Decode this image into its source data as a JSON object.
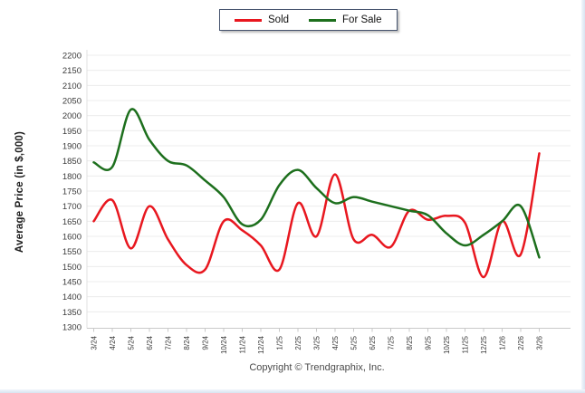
{
  "legend": {
    "items": [
      {
        "label": "Sold",
        "color": "#e8171f"
      },
      {
        "label": "For Sale",
        "color": "#1d6f1d"
      }
    ]
  },
  "y_axis": {
    "title": "Average Price (in $,000)",
    "min": 1300,
    "max": 2200,
    "step": 50
  },
  "footer": {
    "copyright": "Copyright © Trendgraphix, Inc."
  },
  "chart_data": {
    "type": "line",
    "title": "",
    "xlabel": "",
    "ylabel": "Average Price (in $,000)",
    "ylim": [
      1300,
      2200
    ],
    "ytick_step": 50,
    "grid": true,
    "legend_position": "top",
    "grid_color": "#ececec",
    "axis_color": "#c9c9c9",
    "categories": [
      "3/24",
      "4/24",
      "5/24",
      "6/24",
      "7/24",
      "8/24",
      "9/24",
      "10/24",
      "11/24",
      "12/24",
      "1/25",
      "2/25",
      "3/25",
      "4/25",
      "5/25",
      "6/25",
      "7/25",
      "8/25",
      "9/25",
      "10/25",
      "11/25",
      "12/25",
      "1/26",
      "2/26",
      "3/26"
    ],
    "series": [
      {
        "name": "Sold",
        "color": "#e8171f",
        "values": [
          1650,
          1720,
          1560,
          1700,
          1590,
          1505,
          1490,
          1650,
          1620,
          1570,
          1490,
          1710,
          1600,
          1805,
          1590,
          1605,
          1565,
          1685,
          1655,
          1668,
          1645,
          1465,
          1650,
          1540,
          1875
        ]
      },
      {
        "name": "For Sale",
        "color": "#1d6f1d",
        "values": [
          1845,
          1830,
          2020,
          1920,
          1850,
          1835,
          1785,
          1730,
          1640,
          1655,
          1770,
          1820,
          1760,
          1710,
          1730,
          1715,
          1700,
          1685,
          1670,
          1610,
          1570,
          1605,
          1650,
          1700,
          1530
        ]
      }
    ]
  }
}
